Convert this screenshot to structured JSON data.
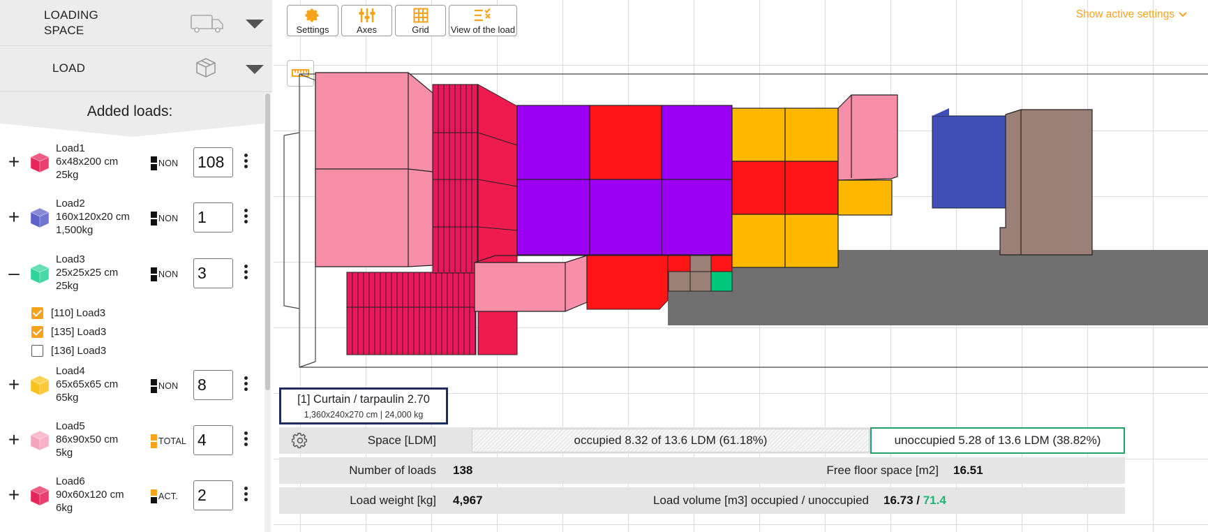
{
  "sidebar": {
    "loading_space": {
      "title_line1": "LOADING",
      "title_line2": "SPACE",
      "icon": "truck-icon"
    },
    "load": {
      "title": "LOAD",
      "icon": "box-icon"
    },
    "added_loads_title": "Added loads:",
    "loads": [
      {
        "toggle": "+",
        "name": "Load1",
        "dims": "6x48x200 cm",
        "weight": "25kg",
        "stack": "NON",
        "qty": "108",
        "color": "#e8255a"
      },
      {
        "toggle": "+",
        "name": "Load2",
        "dims": "160x120x20 cm",
        "weight": "1,500kg",
        "stack": "NON",
        "qty": "1",
        "color": "#5b63c8"
      },
      {
        "toggle": "–",
        "name": "Load3",
        "dims": "25x25x25 cm",
        "weight": "25kg",
        "stack": "NON",
        "qty": "3",
        "color": "#2fd49a"
      },
      {
        "toggle": "+",
        "name": "Load4",
        "dims": "65x65x65 cm",
        "weight": "65kg",
        "stack": "NON",
        "qty": "8",
        "color": "#f9c21a"
      },
      {
        "toggle": "+",
        "name": "Load5",
        "dims": "86x90x50 cm",
        "weight": "5kg",
        "stack": "TOTAL",
        "qty": "4",
        "color": "#f7a5bf"
      },
      {
        "toggle": "+",
        "name": "Load6",
        "dims": "90x60x120 cm",
        "weight": "6kg",
        "stack": "ACT.",
        "qty": "2",
        "color": "#e8255a"
      }
    ],
    "load3_items": [
      {
        "label": "[110] Load3",
        "checked": true
      },
      {
        "label": "[135] Load3",
        "checked": true
      },
      {
        "label": "[136] Load3",
        "checked": false
      }
    ]
  },
  "toolbar": {
    "settings": "Settings",
    "axes": "Axes",
    "grid": "Grid",
    "view": "View of the load",
    "show_active": "Show active settings"
  },
  "accent_color": "#f7a21b",
  "vehicle": {
    "name": "[1] Curtain / tarpaulin 2.70",
    "specs": "1,360x240x270 cm | 24,000 kg"
  },
  "stats": {
    "space_label": "Space [LDM]",
    "occupied": "occupied 8.32 of 13.6 LDM (61.18%)",
    "occupied_fraction": 0.6118,
    "unoccupied": "unoccupied 5.28 of 13.6 LDM (38.82%)",
    "num_loads_label": "Number of loads",
    "num_loads": "138",
    "free_floor_label": "Free floor space [m2]",
    "free_floor": "16.51",
    "weight_label": "Load weight [kg]",
    "weight": "4,967",
    "volume_label": "Load volume [m3] occupied / unoccupied",
    "volume_occupied": "16.73",
    "volume_sep": " / ",
    "volume_unoccupied": "71.4"
  }
}
